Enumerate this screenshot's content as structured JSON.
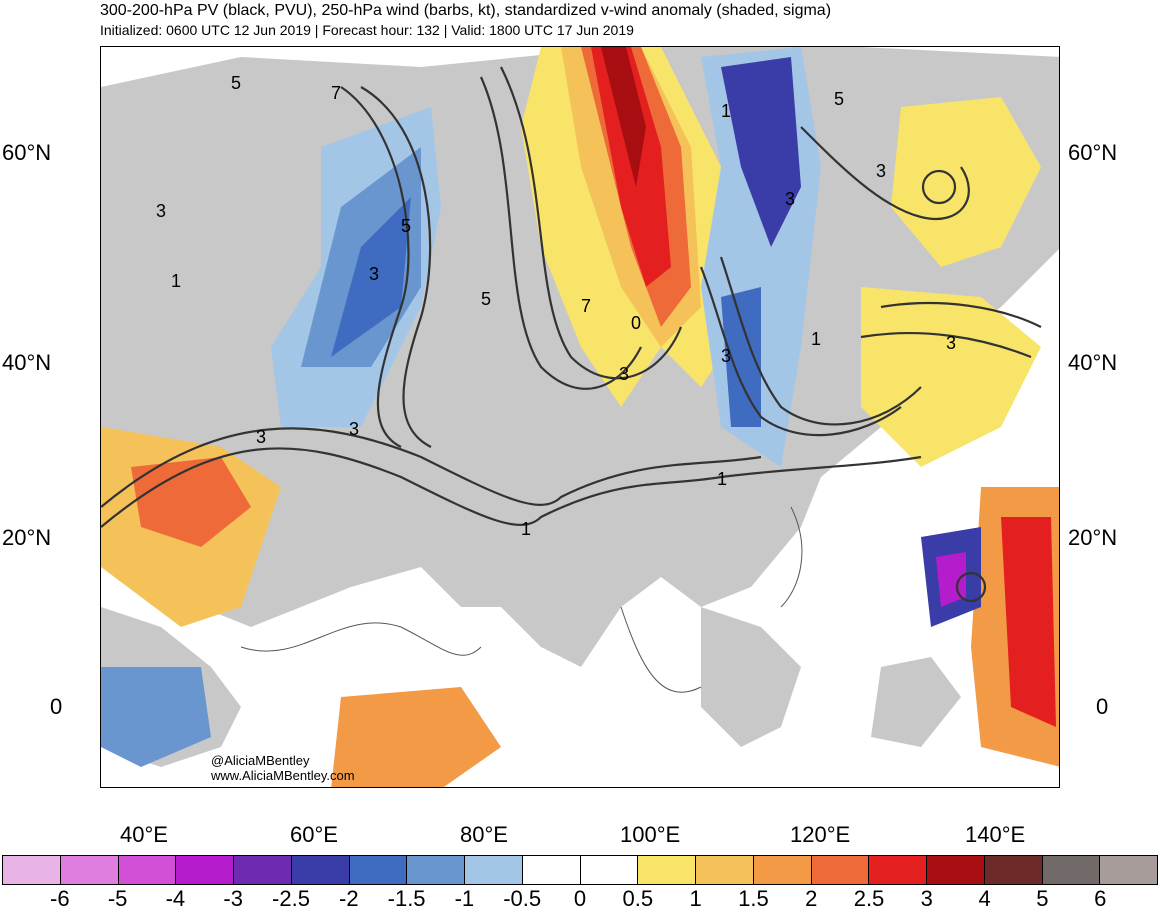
{
  "header": {
    "title": "300-200-hPa PV (black, PVU), 250-hPa wind (barbs, kt), standardized v-wind anomaly (shaded, sigma)",
    "subtitle": "Initialized: 0600 UTC 12 Jun 2019 | Forecast hour: 132 | Valid: 1800 UTC 17 Jun 2019"
  },
  "map": {
    "lat_labels": [
      "60°N",
      "40°N",
      "20°N",
      "0"
    ],
    "lon_labels": [
      "40°E",
      "60°E",
      "80°E",
      "100°E",
      "120°E",
      "140°E"
    ],
    "contour_labels": [
      "5",
      "7",
      "3",
      "1",
      "5",
      "3",
      "5",
      "7",
      "0",
      "3",
      "3",
      "1",
      "5",
      "3",
      "3",
      "3",
      "1",
      "1",
      "3",
      "3",
      "1"
    ],
    "credit_handle": "@AliciaMBentley",
    "credit_url": "www.AliciaMBentley.com"
  },
  "colorbar": {
    "labels": [
      "-6",
      "-5",
      "-4",
      "-3",
      "-2.5",
      "-2",
      "-1.5",
      "-1",
      "-0.5",
      "0",
      "0.5",
      "1",
      "1.5",
      "2",
      "2.5",
      "3",
      "4",
      "5",
      "6"
    ],
    "colors": [
      "#e8b4e6",
      "#e07ee0",
      "#d24fd8",
      "#b41ccc",
      "#6e2ab0",
      "#3a3ca8",
      "#3f6cc0",
      "#6a96d0",
      "#a4c6e6",
      "#ffffff",
      "#ffffff",
      "#f9e46a",
      "#f5c25a",
      "#f29a45",
      "#ee6a38",
      "#e41f1f",
      "#a80d12",
      "#6e2a28",
      "#726a68",
      "#a89c9a"
    ]
  }
}
